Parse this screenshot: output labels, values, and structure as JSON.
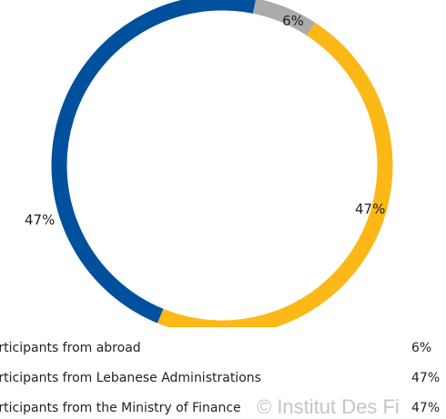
{
  "chart_data": {
    "type": "pie",
    "style": "donut",
    "categories": [
      "Participants from abroad",
      "Participants from Lebanese Administrations",
      "Participants from the Ministry of Finance"
    ],
    "values": [
      6,
      47,
      47
    ],
    "labels": [
      "6%",
      "47%",
      "47%"
    ],
    "colors": [
      "#ABABAB",
      "#FBB817",
      "#00509E"
    ],
    "legend_position": "bottom"
  },
  "watermark": "© Institut Des Fi"
}
